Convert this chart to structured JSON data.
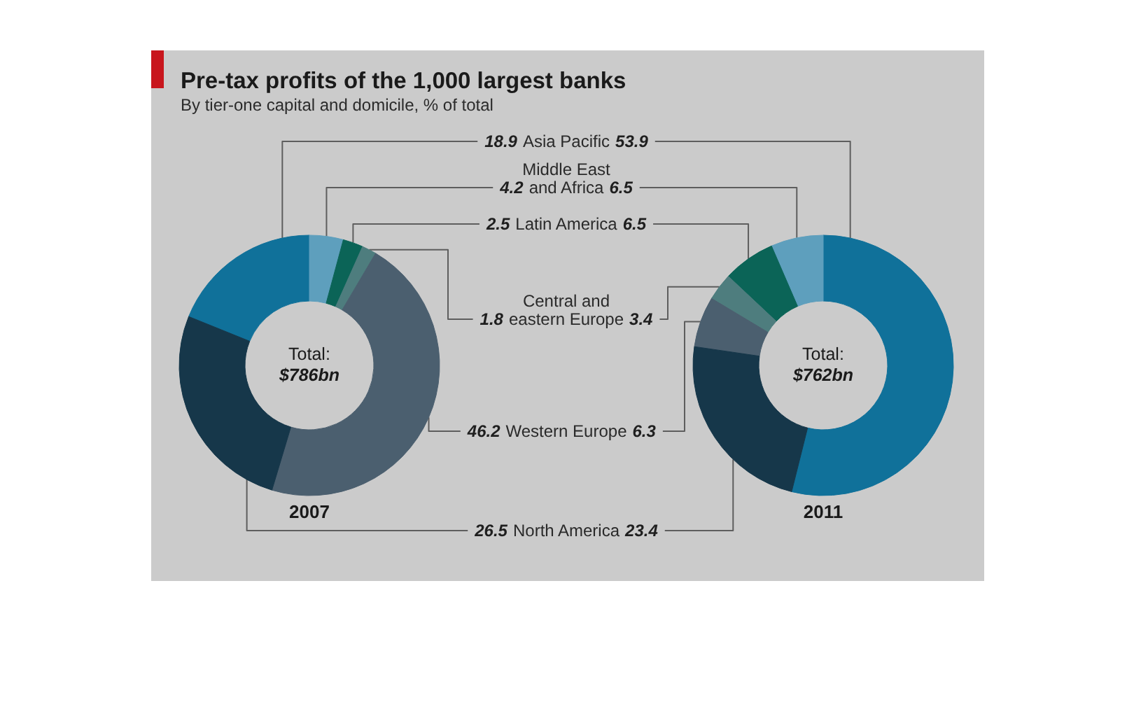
{
  "chart_data": {
    "type": "donut",
    "title": "Pre-tax profits of the 1,000 largest banks",
    "subtitle": "By tier-one capital and domicile, % of total",
    "categories": [
      "Asia Pacific",
      "Middle East and Africa",
      "Latin America",
      "Central and eastern Europe",
      "Western Europe",
      "North America"
    ],
    "colors": [
      "#10719a",
      "#5e9fbd",
      "#0b6457",
      "#4e7d7e",
      "#4b5f6f",
      "#16374a"
    ],
    "series": [
      {
        "name": "2007",
        "values": [
          18.9,
          4.2,
          2.5,
          1.8,
          46.2,
          26.5
        ]
      },
      {
        "name": "2011",
        "values": [
          53.9,
          6.5,
          6.5,
          3.4,
          6.3,
          23.4
        ]
      }
    ],
    "annotations": [
      "Total: $786bn",
      "Total: $762bn"
    ],
    "data_labels": true
  }
}
